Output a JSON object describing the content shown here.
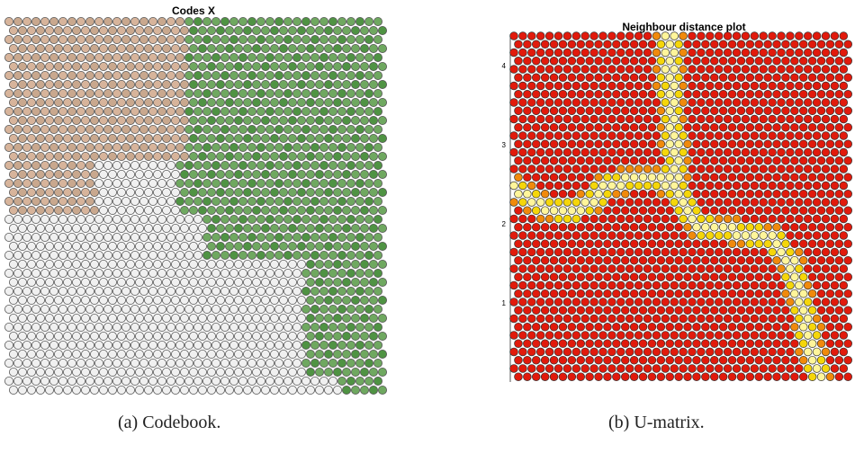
{
  "figures": [
    {
      "title": "Codes X",
      "caption": "(a) Codebook."
    },
    {
      "title": "Neighbour distance plot",
      "caption": "(b) U-matrix."
    }
  ],
  "chart_data": [
    {
      "type": "heatmap",
      "title": "Codes X",
      "grid": {
        "cols": 42,
        "rows": 42
      },
      "cell_shape": "circle",
      "color_classes": {
        "brown": "#c8936b",
        "green": "#2e8b2e",
        "empty": "#f2f2f2"
      },
      "colors": {
        "brown_fill": "#d7b49b",
        "green_fill": "#6fa860",
        "empty_fill": "#f0f0f0",
        "outline": "#555555"
      }
    },
    {
      "type": "heatmap",
      "title": "Neighbour distance plot",
      "grid": {
        "cols": 38,
        "rows": 42
      },
      "cell_shape": "circle",
      "ylim": [
        0,
        4.4
      ],
      "ytick_labels": [
        "1",
        "2",
        "3",
        "4"
      ],
      "ytick_values": [
        1,
        2,
        3,
        4
      ],
      "colors": {
        "low": "#e11a0c",
        "mid": "#f5d60a",
        "high": "#fff59a",
        "outline": "#333333"
      }
    }
  ]
}
